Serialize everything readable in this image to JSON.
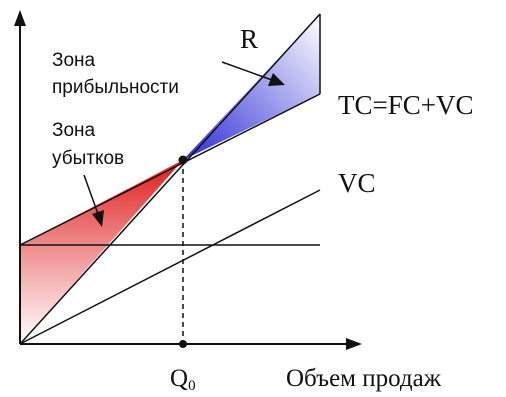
{
  "labels": {
    "profit_zone_line1": "Зона",
    "profit_zone_line2": "прибыльности",
    "loss_zone_line1": "Зона",
    "loss_zone_line2": "убытков",
    "revenue": "R",
    "total_cost": "TC=FC+VC",
    "variable_cost": "VC",
    "breakeven_q_main": "Q",
    "breakeven_q_sub": "0",
    "x_axis": "Объем продаж"
  },
  "colors": {
    "profit_zone": "#2b2bd6",
    "loss_zone": "#e01a1a",
    "lines": "#111111"
  }
}
